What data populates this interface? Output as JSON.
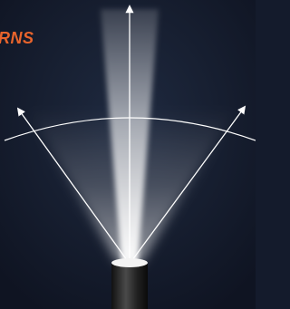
{
  "label": "RNS"
}
